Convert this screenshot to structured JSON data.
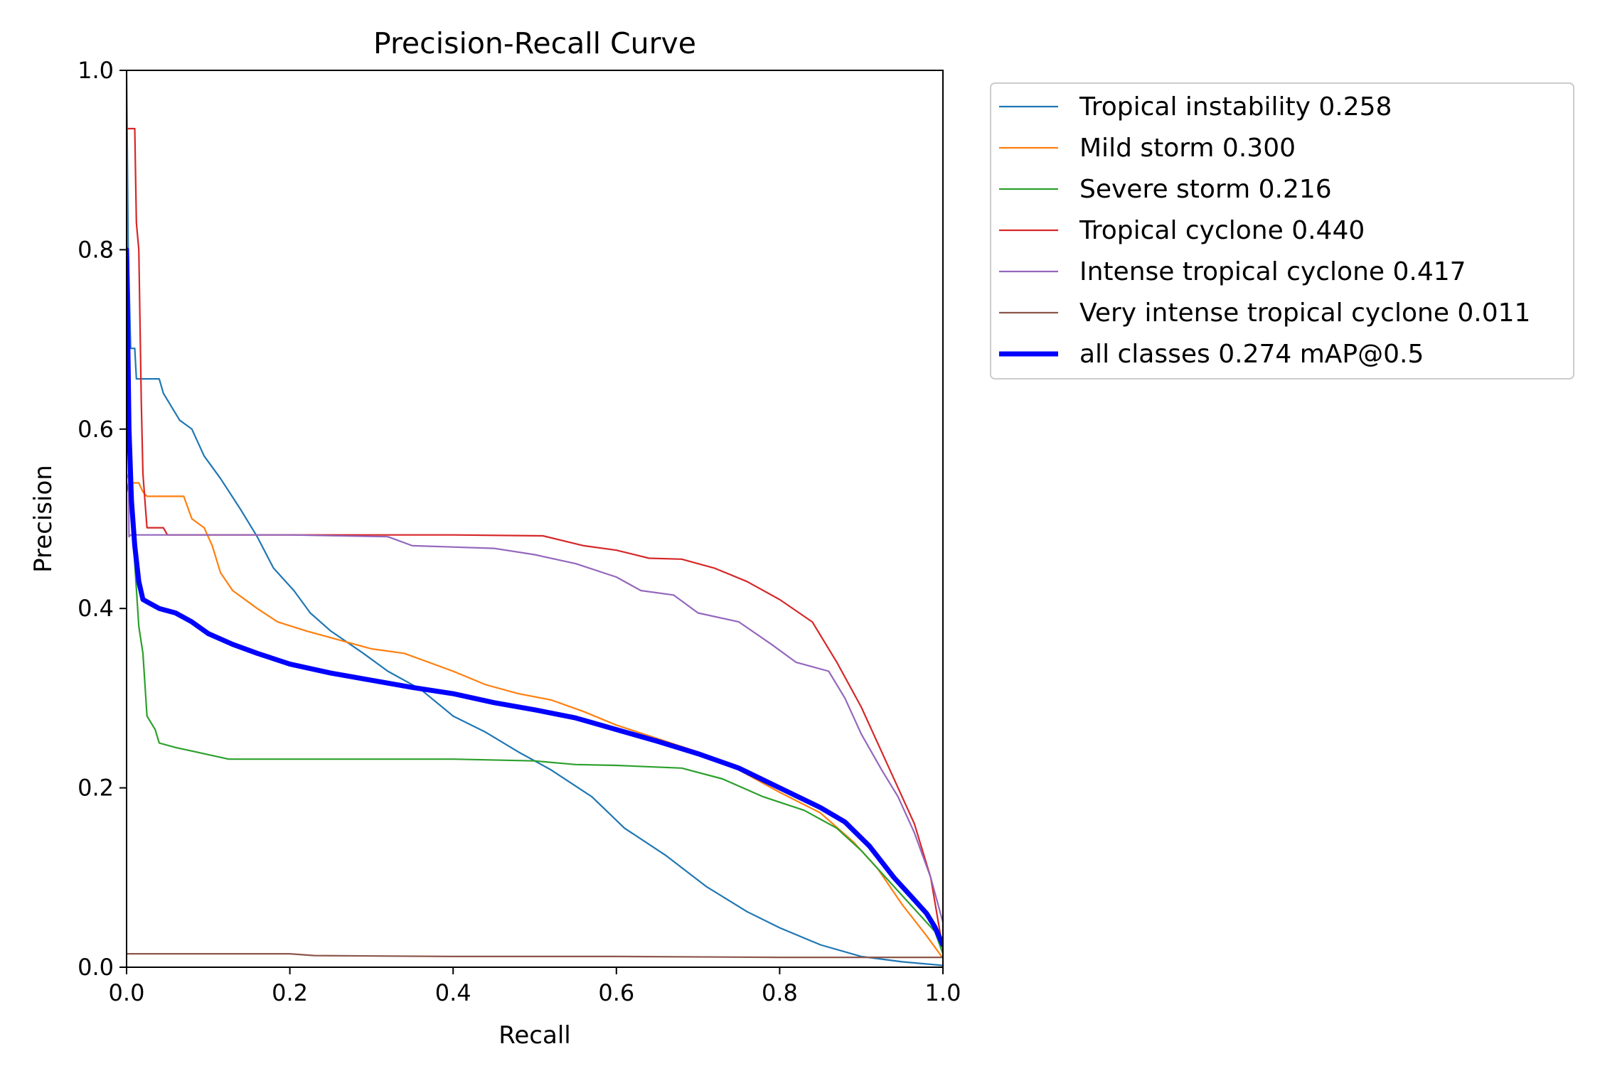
{
  "chart_data": {
    "type": "line",
    "title": "Precision-Recall Curve",
    "xlabel": "Recall",
    "ylabel": "Precision",
    "xlim": [
      0,
      1
    ],
    "ylim": [
      0,
      1
    ],
    "x_ticks": [
      "0.0",
      "0.2",
      "0.4",
      "0.6",
      "0.8",
      "1.0"
    ],
    "y_ticks": [
      "0.0",
      "0.2",
      "0.4",
      "0.6",
      "0.8",
      "1.0"
    ],
    "grid": false,
    "legend_position": "outside-top-right",
    "series": [
      {
        "name": "Tropical instability 0.258",
        "color": "#1f77b4",
        "points": [
          [
            0,
            1.0
          ],
          [
            0.002,
            0.8
          ],
          [
            0.005,
            0.69
          ],
          [
            0.01,
            0.69
          ],
          [
            0.012,
            0.656
          ],
          [
            0.04,
            0.656
          ],
          [
            0.045,
            0.64
          ],
          [
            0.065,
            0.61
          ],
          [
            0.08,
            0.6
          ],
          [
            0.095,
            0.57
          ],
          [
            0.115,
            0.545
          ],
          [
            0.14,
            0.51
          ],
          [
            0.16,
            0.48
          ],
          [
            0.18,
            0.445
          ],
          [
            0.205,
            0.42
          ],
          [
            0.225,
            0.395
          ],
          [
            0.25,
            0.375
          ],
          [
            0.29,
            0.35
          ],
          [
            0.32,
            0.33
          ],
          [
            0.36,
            0.31
          ],
          [
            0.4,
            0.28
          ],
          [
            0.44,
            0.262
          ],
          [
            0.48,
            0.24
          ],
          [
            0.52,
            0.22
          ],
          [
            0.57,
            0.19
          ],
          [
            0.61,
            0.155
          ],
          [
            0.66,
            0.125
          ],
          [
            0.71,
            0.09
          ],
          [
            0.76,
            0.062
          ],
          [
            0.8,
            0.044
          ],
          [
            0.85,
            0.025
          ],
          [
            0.9,
            0.012
          ],
          [
            0.95,
            0.006
          ],
          [
            1.0,
            0.002
          ]
        ]
      },
      {
        "name": "Mild storm 0.300",
        "color": "#ff7f0e",
        "points": [
          [
            0,
            0.55
          ],
          [
            0.005,
            0.54
          ],
          [
            0.015,
            0.54
          ],
          [
            0.02,
            0.53
          ],
          [
            0.025,
            0.525
          ],
          [
            0.07,
            0.525
          ],
          [
            0.08,
            0.5
          ],
          [
            0.095,
            0.49
          ],
          [
            0.105,
            0.47
          ],
          [
            0.115,
            0.44
          ],
          [
            0.13,
            0.42
          ],
          [
            0.16,
            0.4
          ],
          [
            0.185,
            0.385
          ],
          [
            0.22,
            0.375
          ],
          [
            0.26,
            0.365
          ],
          [
            0.3,
            0.355
          ],
          [
            0.34,
            0.35
          ],
          [
            0.37,
            0.34
          ],
          [
            0.4,
            0.33
          ],
          [
            0.44,
            0.315
          ],
          [
            0.48,
            0.305
          ],
          [
            0.52,
            0.298
          ],
          [
            0.56,
            0.285
          ],
          [
            0.6,
            0.27
          ],
          [
            0.65,
            0.255
          ],
          [
            0.7,
            0.24
          ],
          [
            0.75,
            0.22
          ],
          [
            0.8,
            0.195
          ],
          [
            0.85,
            0.172
          ],
          [
            0.89,
            0.14
          ],
          [
            0.92,
            0.11
          ],
          [
            0.95,
            0.07
          ],
          [
            0.98,
            0.035
          ],
          [
            1.0,
            0.01
          ]
        ]
      },
      {
        "name": "Severe storm 0.216",
        "color": "#2ca02c",
        "points": [
          [
            0,
            0.54
          ],
          [
            0.005,
            0.52
          ],
          [
            0.01,
            0.45
          ],
          [
            0.015,
            0.38
          ],
          [
            0.02,
            0.35
          ],
          [
            0.025,
            0.28
          ],
          [
            0.035,
            0.265
          ],
          [
            0.04,
            0.25
          ],
          [
            0.06,
            0.245
          ],
          [
            0.085,
            0.24
          ],
          [
            0.125,
            0.232
          ],
          [
            0.2,
            0.232
          ],
          [
            0.3,
            0.232
          ],
          [
            0.4,
            0.232
          ],
          [
            0.5,
            0.23
          ],
          [
            0.55,
            0.226
          ],
          [
            0.6,
            0.225
          ],
          [
            0.68,
            0.222
          ],
          [
            0.73,
            0.21
          ],
          [
            0.78,
            0.19
          ],
          [
            0.83,
            0.175
          ],
          [
            0.87,
            0.155
          ],
          [
            0.9,
            0.13
          ],
          [
            0.93,
            0.1
          ],
          [
            0.96,
            0.07
          ],
          [
            0.99,
            0.04
          ],
          [
            1.0,
            0.015
          ]
        ]
      },
      {
        "name": "Tropical cyclone 0.440",
        "color": "#d62728",
        "points": [
          [
            0,
            0.935
          ],
          [
            0.01,
            0.935
          ],
          [
            0.012,
            0.83
          ],
          [
            0.015,
            0.8
          ],
          [
            0.018,
            0.63
          ],
          [
            0.02,
            0.55
          ],
          [
            0.025,
            0.49
          ],
          [
            0.045,
            0.49
          ],
          [
            0.05,
            0.482
          ],
          [
            0.2,
            0.482
          ],
          [
            0.4,
            0.482
          ],
          [
            0.51,
            0.481
          ],
          [
            0.56,
            0.47
          ],
          [
            0.6,
            0.465
          ],
          [
            0.64,
            0.456
          ],
          [
            0.68,
            0.455
          ],
          [
            0.72,
            0.445
          ],
          [
            0.76,
            0.43
          ],
          [
            0.8,
            0.41
          ],
          [
            0.84,
            0.385
          ],
          [
            0.87,
            0.34
          ],
          [
            0.9,
            0.29
          ],
          [
            0.925,
            0.24
          ],
          [
            0.945,
            0.2
          ],
          [
            0.965,
            0.16
          ],
          [
            0.985,
            0.1
          ],
          [
            1.0,
            0.02
          ]
        ]
      },
      {
        "name": "Intense tropical cyclone 0.417",
        "color": "#9467bd",
        "points": [
          [
            0,
            0.94
          ],
          [
            0.003,
            0.48
          ],
          [
            0.005,
            0.482
          ],
          [
            0.2,
            0.482
          ],
          [
            0.32,
            0.48
          ],
          [
            0.35,
            0.47
          ],
          [
            0.45,
            0.467
          ],
          [
            0.5,
            0.46
          ],
          [
            0.55,
            0.45
          ],
          [
            0.6,
            0.435
          ],
          [
            0.63,
            0.42
          ],
          [
            0.67,
            0.415
          ],
          [
            0.7,
            0.395
          ],
          [
            0.75,
            0.385
          ],
          [
            0.79,
            0.36
          ],
          [
            0.82,
            0.34
          ],
          [
            0.86,
            0.33
          ],
          [
            0.88,
            0.3
          ],
          [
            0.9,
            0.26
          ],
          [
            0.925,
            0.22
          ],
          [
            0.945,
            0.19
          ],
          [
            0.965,
            0.15
          ],
          [
            0.985,
            0.1
          ],
          [
            1.0,
            0.05
          ]
        ]
      },
      {
        "name": "Very intense tropical cyclone 0.011",
        "color": "#8c564b",
        "points": [
          [
            0,
            0.015
          ],
          [
            0.2,
            0.015
          ],
          [
            0.23,
            0.013
          ],
          [
            0.4,
            0.012
          ],
          [
            0.6,
            0.012
          ],
          [
            0.8,
            0.011
          ],
          [
            1.0,
            0.011
          ]
        ]
      },
      {
        "name": "all classes 0.274 mAP@0.5",
        "color": "#0000ff",
        "points": [
          [
            0,
            0.8
          ],
          [
            0.003,
            0.6
          ],
          [
            0.006,
            0.52
          ],
          [
            0.01,
            0.47
          ],
          [
            0.015,
            0.43
          ],
          [
            0.02,
            0.41
          ],
          [
            0.03,
            0.405
          ],
          [
            0.04,
            0.4
          ],
          [
            0.06,
            0.395
          ],
          [
            0.08,
            0.385
          ],
          [
            0.1,
            0.372
          ],
          [
            0.13,
            0.36
          ],
          [
            0.16,
            0.35
          ],
          [
            0.2,
            0.338
          ],
          [
            0.25,
            0.328
          ],
          [
            0.3,
            0.32
          ],
          [
            0.35,
            0.312
          ],
          [
            0.4,
            0.305
          ],
          [
            0.45,
            0.295
          ],
          [
            0.5,
            0.287
          ],
          [
            0.55,
            0.278
          ],
          [
            0.6,
            0.265
          ],
          [
            0.65,
            0.252
          ],
          [
            0.7,
            0.238
          ],
          [
            0.75,
            0.222
          ],
          [
            0.8,
            0.2
          ],
          [
            0.85,
            0.178
          ],
          [
            0.88,
            0.162
          ],
          [
            0.91,
            0.135
          ],
          [
            0.94,
            0.1
          ],
          [
            0.96,
            0.08
          ],
          [
            0.98,
            0.06
          ],
          [
            0.99,
            0.045
          ],
          [
            1.0,
            0.025
          ]
        ]
      }
    ]
  }
}
